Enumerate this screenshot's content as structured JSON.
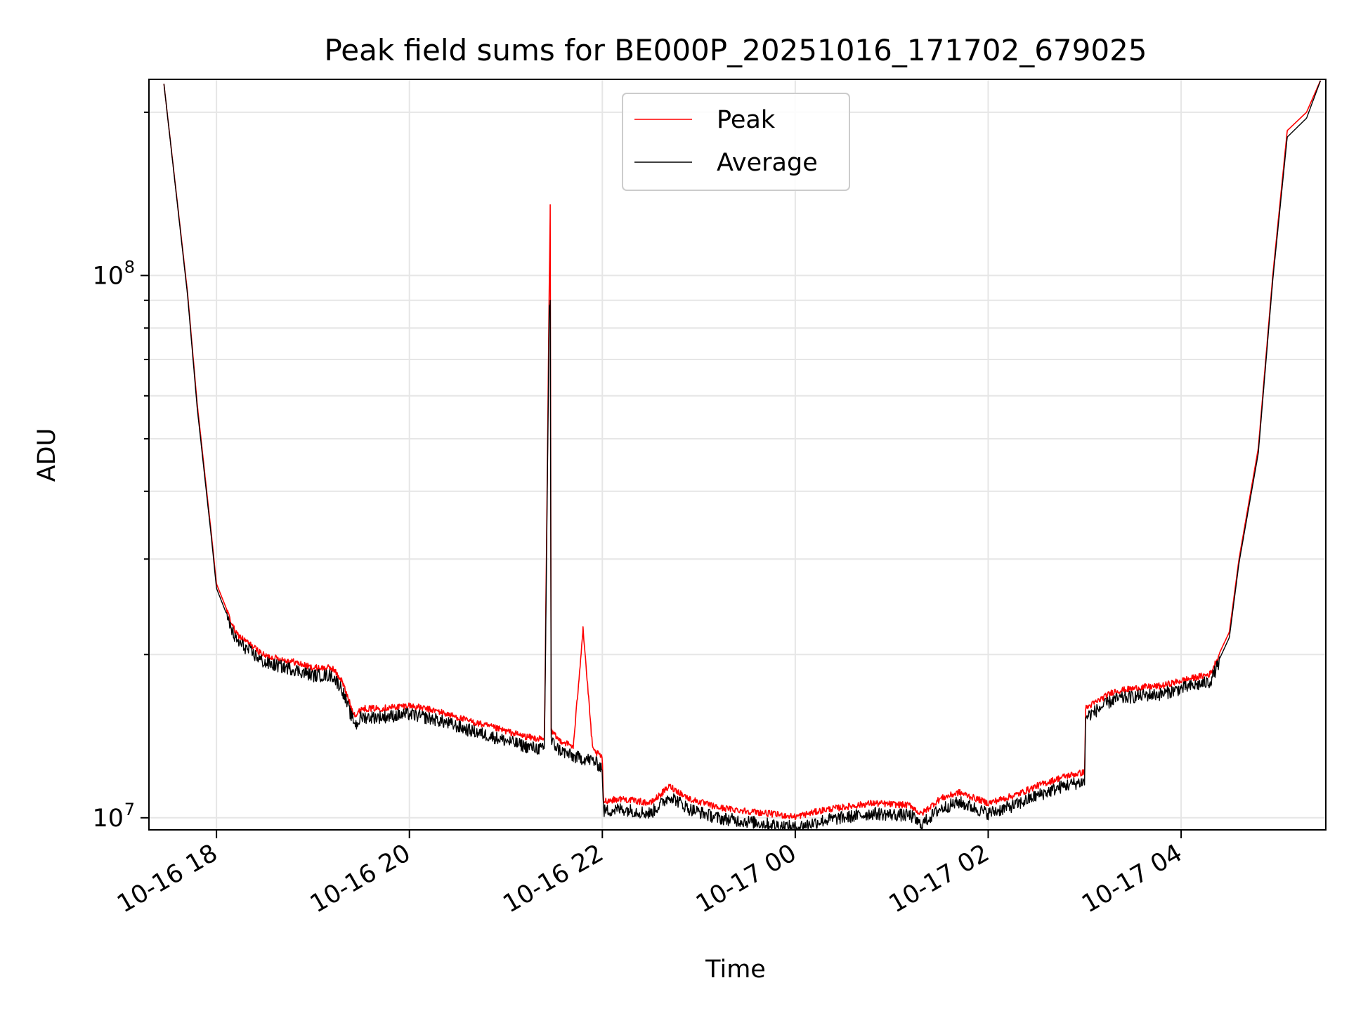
{
  "chart_data": {
    "type": "line",
    "title": "Peak field sums for BE000P_20251016_171702_679025",
    "xlabel": "Time",
    "ylabel": "ADU",
    "yscale": "log",
    "xlim": [
      17.3,
      29.5
    ],
    "ylim": [
      9500000.0,
      230000000.0
    ],
    "grid": true,
    "legend_position": "top-center",
    "x_ticks": [
      {
        "value": 18,
        "label": "10-16 18"
      },
      {
        "value": 20,
        "label": "10-16 20"
      },
      {
        "value": 22,
        "label": "10-16 22"
      },
      {
        "value": 24,
        "label": "10-17 00"
      },
      {
        "value": 26,
        "label": "10-17 02"
      },
      {
        "value": 28,
        "label": "10-17 04"
      }
    ],
    "y_ticks": [
      {
        "value": 10000000,
        "base": "10",
        "exp": "7"
      },
      {
        "value": 100000000,
        "base": "10",
        "exp": "8"
      }
    ],
    "y_minor_ticks": [
      20000000,
      30000000,
      40000000,
      50000000,
      60000000,
      70000000,
      80000000,
      90000000,
      200000000
    ],
    "series": [
      {
        "name": "Peak",
        "color": "#ff0000",
        "x": [
          17.45,
          17.7,
          17.8,
          17.95,
          18.0,
          18.2,
          18.5,
          18.8,
          19.0,
          19.2,
          19.3,
          19.4,
          19.45,
          19.5,
          19.7,
          20.0,
          20.3,
          20.6,
          20.9,
          21.2,
          21.4,
          21.45,
          21.46,
          21.47,
          21.5,
          21.55,
          21.7,
          21.8,
          21.9,
          22.0,
          22.01,
          22.2,
          22.5,
          22.7,
          22.9,
          23.2,
          23.6,
          24.0,
          24.3,
          24.8,
          25.2,
          25.3,
          25.5,
          25.7,
          26.0,
          26.3,
          26.5,
          26.8,
          27.0,
          27.01,
          27.3,
          27.6,
          27.8,
          28.0,
          28.3,
          28.5,
          28.6,
          28.8,
          28.95,
          29.1,
          29.3,
          29.45
        ],
        "y": [
          230000000.0,
          93000000.0,
          58000000.0,
          33000000.0,
          27000000.0,
          22000000.0,
          20000000.0,
          19500000.0,
          19000000.0,
          19000000.0,
          18000000.0,
          16000000.0,
          15500000.0,
          16000000.0,
          16000000.0,
          16200000.0,
          15800000.0,
          15200000.0,
          14700000.0,
          14200000.0,
          14000000.0,
          97000000.0,
          135000000.0,
          14500000.0,
          14300000.0,
          14000000.0,
          13600000.0,
          22500000.0,
          13400000.0,
          13000000.0,
          10800000.0,
          10900000.0,
          10700000.0,
          11500000.0,
          10900000.0,
          10500000.0,
          10300000.0,
          10100000.0,
          10400000.0,
          10700000.0,
          10600000.0,
          10200000.0,
          10900000.0,
          11200000.0,
          10700000.0,
          11100000.0,
          11500000.0,
          12000000.0,
          12200000.0,
          16000000.0,
          17200000.0,
          17500000.0,
          17600000.0,
          18000000.0,
          18500000.0,
          22000000.0,
          30000000.0,
          48000000.0,
          100000000.0,
          185000000.0,
          200000000.0,
          230000000.0
        ]
      },
      {
        "name": "Average",
        "color": "#000000",
        "x": [
          17.45,
          17.7,
          17.8,
          17.95,
          18.0,
          18.2,
          18.5,
          18.8,
          19.0,
          19.2,
          19.3,
          19.4,
          19.45,
          19.5,
          19.7,
          20.0,
          20.3,
          20.6,
          20.9,
          21.2,
          21.4,
          21.45,
          21.46,
          21.47,
          21.5,
          21.55,
          21.7,
          21.8,
          21.9,
          22.0,
          22.01,
          22.2,
          22.5,
          22.7,
          22.9,
          23.2,
          23.6,
          24.0,
          24.3,
          24.8,
          25.2,
          25.3,
          25.5,
          25.7,
          26.0,
          26.3,
          26.5,
          26.8,
          27.0,
          27.01,
          27.3,
          27.6,
          27.8,
          28.0,
          28.3,
          28.5,
          28.6,
          28.8,
          28.95,
          29.1,
          29.3,
          29.45
        ],
        "y": [
          230000000.0,
          92000000.0,
          57000000.0,
          32500000.0,
          26500000.0,
          21500000.0,
          19500000.0,
          19000000.0,
          18500000.0,
          18500000.0,
          17500000.0,
          15500000.0,
          15000000.0,
          15500000.0,
          15500000.0,
          15700000.0,
          15300000.0,
          14700000.0,
          14200000.0,
          13700000.0,
          13500000.0,
          88000000.0,
          90000000.0,
          14000000.0,
          13800000.0,
          13500000.0,
          13100000.0,
          13000000.0,
          12900000.0,
          12500000.0,
          10400000.0,
          10500000.0,
          10300000.0,
          11100000.0,
          10500000.0,
          10100000.0,
          9900000.0,
          9700000.0,
          10000000.0,
          10300000.0,
          10200000.0,
          9800000.0,
          10500000.0,
          10800000.0,
          10300000.0,
          10700000.0,
          11100000.0,
          11600000.0,
          11800000.0,
          15500000.0,
          16700000.0,
          17000000.0,
          17100000.0,
          17500000.0,
          18000000.0,
          21500000.0,
          29500000.0,
          47000000.0,
          98000000.0,
          180000000.0,
          195000000.0,
          230000000.0
        ]
      }
    ]
  }
}
